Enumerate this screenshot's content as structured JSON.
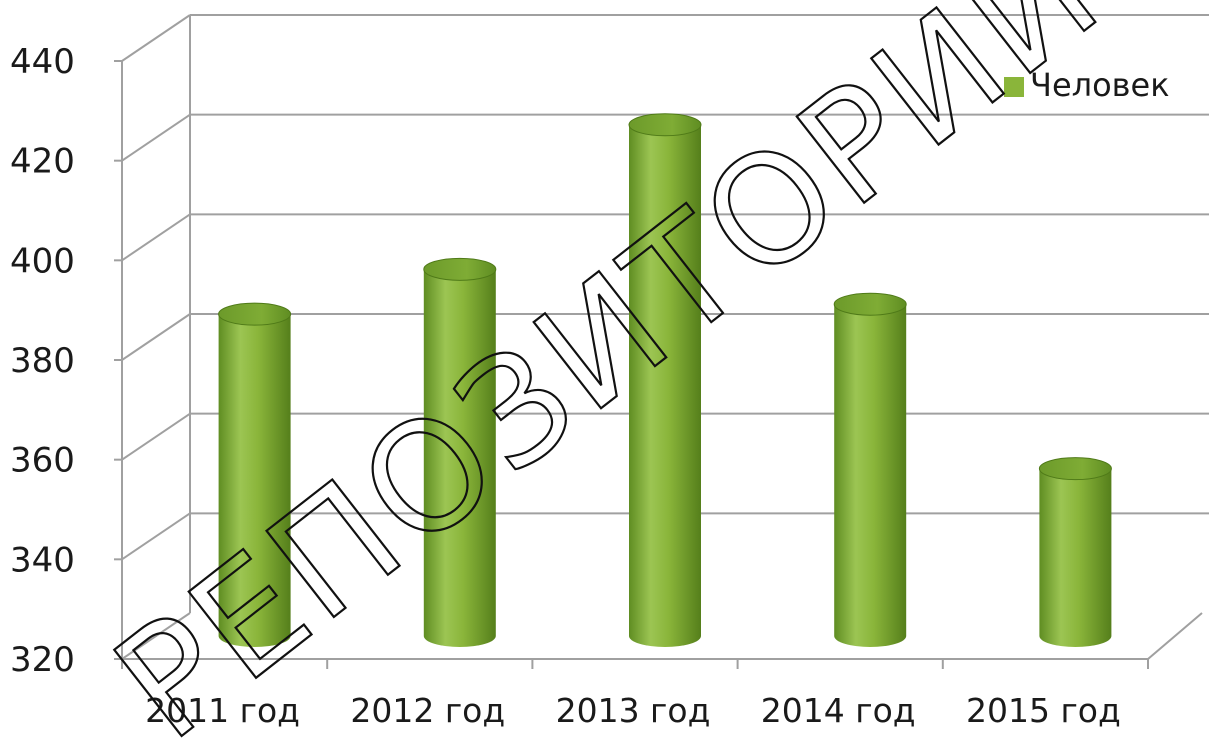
{
  "chart_data": {
    "type": "bar",
    "style": "3d-cylinder",
    "categories": [
      "2011 год",
      "2012 год",
      "2013 год",
      "2014 год",
      "2015 год"
    ],
    "series": [
      {
        "name": "Человек",
        "values": [
          390,
          399,
          428,
          392,
          359
        ],
        "color": "#8ab53a"
      }
    ],
    "ylim": [
      320,
      440
    ],
    "yticks": [
      320,
      340,
      360,
      380,
      400,
      420,
      440
    ],
    "grid": true,
    "legend": "top-right"
  },
  "watermark": "РЕПОЗИТОРИЙ БГПУ",
  "colors": {
    "bar": "#8ab53a",
    "bar_dark": "#5d8a1e",
    "bar_light": "#b9d97a",
    "grid": "#a0a0a0"
  }
}
